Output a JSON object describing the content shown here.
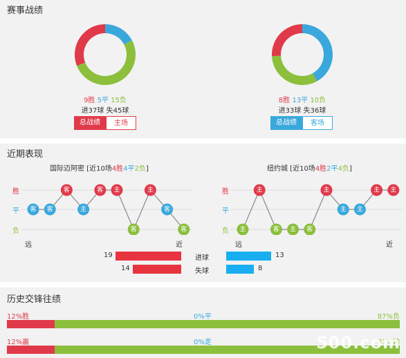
{
  "record": {
    "title": "赛事战绩",
    "home": {
      "win": 9,
      "draw": 5,
      "loss": 15,
      "win_text": "9胜",
      "draw_text": "5平",
      "loss_text": "15负",
      "goals_text": "进37球",
      "conceded_text": "失45球",
      "tab_active": "总战绩",
      "tab_other": "主场"
    },
    "away": {
      "win": 8,
      "draw": 13,
      "loss": 10,
      "win_text": "8胜",
      "draw_text": "13平",
      "loss_text": "10负",
      "goals_text": "进33球",
      "conceded_text": "失36球",
      "tab_active": "总战绩",
      "tab_other": "客场"
    }
  },
  "recent": {
    "title": "近期表现",
    "y_labels": {
      "win": "胜",
      "draw": "平",
      "loss": "负"
    },
    "far": "远",
    "near": "近",
    "home": {
      "team": "国际迈阿密",
      "summary_prefix": " [近10场",
      "w": "4胜",
      "d": "4平",
      "l": "2负",
      "summary_suffix": "]",
      "results": [
        "D",
        "D",
        "W",
        "D",
        "W",
        "W",
        "L",
        "W",
        "D",
        "L"
      ],
      "venues": [
        "客",
        "客",
        "客",
        "主",
        "客",
        "主",
        "客",
        "主",
        "客",
        "客"
      ]
    },
    "away": {
      "team": "纽约城",
      "summary_prefix": " [近10场",
      "w": "4胜",
      "d": "2平",
      "l": "4负",
      "summary_suffix": "]",
      "results": [
        "L",
        "W",
        "L",
        "L",
        "L",
        "W",
        "D",
        "D",
        "W",
        "W"
      ],
      "venues": [
        "主",
        "主",
        "客",
        "主",
        "客",
        "主",
        "主",
        "主",
        "主",
        "主"
      ]
    },
    "goals_label": "进球",
    "conceded_label": "失球",
    "home_goals": 19,
    "home_conceded": 14,
    "away_goals": 13,
    "away_conceded": 8
  },
  "history": {
    "title": "历史交锋往绩",
    "row1": {
      "left": "12%胜",
      "mid": "0%平",
      "right": "87%负",
      "left_pct": 12,
      "right_pct": 87
    },
    "row2": {
      "left": "12%赢",
      "mid": "0%走",
      "right": "87%输",
      "left_pct": 12,
      "right_pct": 87
    }
  },
  "watermark": "500.com",
  "colors": {
    "red": "#e03a4a",
    "blue": "#3aa8dc",
    "green": "#8bbf3c",
    "cyan": "#18aef0"
  }
}
